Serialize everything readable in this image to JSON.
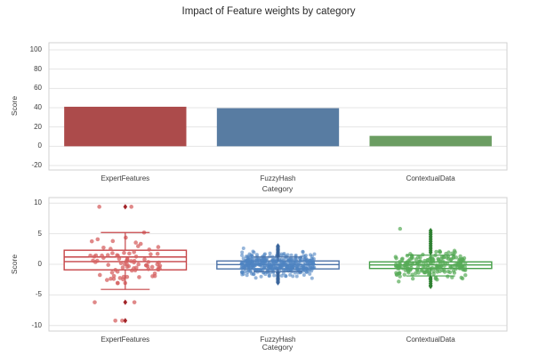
{
  "figure": {
    "title": "Impact of Feature weights by category",
    "background": "#ffffff",
    "grid_color": "#e4e4e4",
    "spine_color": "#d2d2d2",
    "text_color": "#3b3b3b"
  },
  "chart_data": [
    {
      "type": "bar",
      "title": "",
      "categories": [
        "ExpertFeatures",
        "FuzzyHash",
        "ContextualData"
      ],
      "values": [
        41,
        39.5,
        10.8
      ],
      "colors": [
        "#ac4b4b",
        "#587ca2",
        "#6b9d62"
      ],
      "xlabel": "Category",
      "ylabel": "Score",
      "yticks": [
        -20,
        0,
        20,
        40,
        60,
        80,
        100
      ],
      "ylim": [
        -24.6,
        107.4
      ],
      "bar_width_frac": 0.8,
      "grid": true
    },
    {
      "type": "boxplot_with_strip",
      "title": "",
      "categories": [
        "ExpertFeatures",
        "FuzzyHash",
        "ContextualData"
      ],
      "xlabel": "Category",
      "ylabel": "Score",
      "yticks": [
        -10,
        -5,
        0,
        5,
        10
      ],
      "ylim": [
        -10.9,
        10.9
      ],
      "box_width_frac": 0.8,
      "cap_width_frac": 0.4,
      "grid": true,
      "series": [
        {
          "name": "ExpertFeatures",
          "box_color": "#c64548",
          "point_color": "#d66161",
          "point_opacity": 0.75,
          "point_r": 2.3,
          "flier_color": "#a22428",
          "box": {
            "low": -0.9,
            "high": 2.3,
            "inner_lines": [
              1.2,
              0.45
            ],
            "whisker_low": -4.1,
            "whisker_high": 5.2
          },
          "fliers": [
            9.4,
            -6.2,
            -9.2
          ],
          "strip": {
            "n": 82,
            "center": 0.2,
            "std": 2.1,
            "clip": [
              -4.1,
              5.2
            ],
            "jitter_frac": 0.23,
            "seed": 7,
            "extras": [
              [
                -0.17,
                9.4
              ],
              [
                0.04,
                9.4
              ],
              [
                -0.2,
                -6.2
              ],
              [
                0.06,
                -6.2
              ],
              [
                -0.065,
                -9.2
              ],
              [
                -0.02,
                -9.2
              ]
            ]
          }
        },
        {
          "name": "FuzzyHash",
          "box_color": "#4c73a8",
          "point_color": "#4f83c2",
          "point_opacity": 0.6,
          "point_r": 2.0,
          "flier_color": "#3a659c",
          "box": {
            "low": -0.75,
            "high": 0.55,
            "inner_lines": [
              -0.05
            ],
            "whisker_low": -1.2,
            "whisker_high": 1.2
          },
          "fliers": [
            3.0,
            2.8,
            2.6,
            2.4,
            2.2,
            2.0,
            1.8,
            1.6,
            1.4,
            -1.4,
            -1.6,
            -1.8,
            -2.0,
            -2.2,
            -2.4,
            -2.6,
            -2.8,
            -3.0
          ],
          "strip": {
            "n": 430,
            "center": -0.05,
            "std": 0.85,
            "clip": [
              -2.7,
              2.7
            ],
            "jitter_frac": 0.24,
            "seed": 11,
            "extras": []
          }
        },
        {
          "name": "ContextualData",
          "box_color": "#47a04a",
          "point_color": "#57ab57",
          "point_opacity": 0.7,
          "point_r": 2.2,
          "flier_color": "#2f8132",
          "box": {
            "low": -0.68,
            "high": 0.4,
            "inner_lines": [
              -0.1
            ],
            "whisker_low": -1.9,
            "whisker_high": 1.5
          },
          "fliers": [
            5.5,
            5.2,
            4.9,
            4.6,
            4.3,
            4.0,
            3.7,
            3.4,
            3.1,
            2.8,
            2.5,
            2.2,
            1.9,
            -2.2,
            -2.5,
            -2.8,
            -3.1,
            -3.4,
            -3.6
          ],
          "strip": {
            "n": 210,
            "center": -0.1,
            "std": 1.05,
            "clip": [
              -3.3,
              4.4
            ],
            "jitter_frac": 0.23,
            "seed": 23,
            "extras": [
              [
                -0.2,
                5.8
              ]
            ]
          }
        }
      ]
    }
  ]
}
